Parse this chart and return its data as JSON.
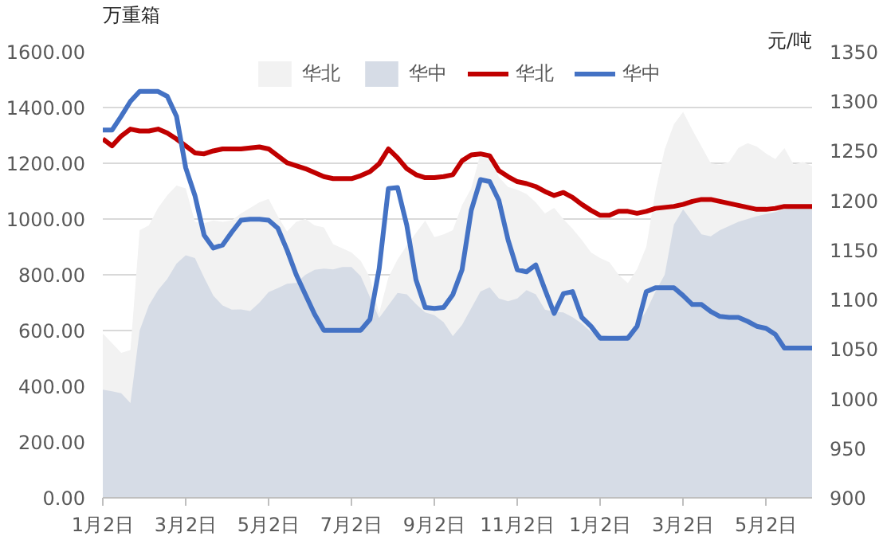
{
  "chart_data": {
    "type": "line",
    "categories": [
      "1月2日",
      null,
      null,
      null,
      null,
      null,
      null,
      null,
      null,
      "3月2日",
      null,
      null,
      null,
      null,
      null,
      null,
      null,
      null,
      "5月2日",
      null,
      null,
      null,
      null,
      null,
      null,
      null,
      null,
      "7月2日",
      null,
      null,
      null,
      null,
      null,
      null,
      null,
      null,
      "9月2日",
      null,
      null,
      null,
      null,
      null,
      null,
      null,
      null,
      "11月2日",
      null,
      null,
      null,
      null,
      null,
      null,
      null,
      null,
      "1月2日",
      null,
      null,
      null,
      null,
      null,
      null,
      null,
      null,
      "3月2日",
      null,
      null,
      null,
      null,
      null,
      null,
      null,
      null,
      "5月2日",
      null,
      null,
      null,
      null,
      null
    ],
    "series": [
      {
        "name": "华北",
        "type": "area",
        "color": "#f2f2f2",
        "values": [
          589,
          555,
          520,
          530,
          960,
          977,
          1040,
          1085,
          1120,
          1110,
          990,
          985,
          995,
          990,
          995,
          1020,
          1040,
          1060,
          1072,
          1010,
          955,
          990,
          1000,
          977,
          970,
          910,
          895,
          880,
          850,
          790,
          662,
          790,
          855,
          905,
          950,
          994,
          935,
          945,
          960,
          1050,
          1110,
          1235,
          1240,
          1150,
          1115,
          1105,
          1090,
          1060,
          1020,
          1040,
          1000,
          965,
          925,
          880,
          860,
          845,
          800,
          770,
          820,
          900,
          1100,
          1250,
          1340,
          1384,
          1320,
          1260,
          1200,
          1195,
          1205,
          1255,
          1272,
          1260,
          1235,
          1215,
          1254,
          1195,
          1205,
          1190
        ]
      },
      {
        "name": "华中",
        "type": "area",
        "color": "#d6dce6",
        "values": [
          388,
          382,
          375,
          340,
          600,
          690,
          745,
          785,
          840,
          870,
          860,
          790,
          725,
          690,
          675,
          676,
          670,
          700,
          738,
          752,
          768,
          771,
          800,
          818,
          822,
          819,
          828,
          828,
          795,
          720,
          645,
          690,
          735,
          730,
          695,
          665,
          655,
          630,
          580,
          620,
          680,
          740,
          755,
          715,
          705,
          715,
          745,
          730,
          675,
          667,
          665,
          648,
          625,
          595,
          585,
          580,
          580,
          585,
          620,
          670,
          740,
          800,
          980,
          1035,
          990,
          945,
          938,
          960,
          975,
          990,
          1000,
          1010,
          1018,
          1025,
          1035,
          1040,
          1043,
          1045
        ]
      },
      {
        "name": "华北",
        "type": "line",
        "axis": "y2",
        "color": "#c00000",
        "values": [
          1262,
          1255,
          1265,
          1272,
          1270,
          1270,
          1272,
          1268,
          1262,
          1255,
          1248,
          1247,
          1250,
          1252,
          1252,
          1252,
          1253,
          1254,
          1252,
          1245,
          1238,
          1235,
          1232,
          1228,
          1224,
          1222,
          1222,
          1222,
          1225,
          1229,
          1237,
          1252,
          1243,
          1232,
          1226,
          1223,
          1223,
          1224,
          1226,
          1240,
          1246,
          1247,
          1245,
          1230,
          1224,
          1219,
          1217,
          1214,
          1209,
          1205,
          1208,
          1203,
          1196,
          1190,
          1185,
          1185,
          1189,
          1189,
          1187,
          1189,
          1192,
          1193,
          1194,
          1196,
          1199,
          1201,
          1201,
          1199,
          1197,
          1195,
          1193,
          1191,
          1191,
          1192,
          1194,
          1194,
          1194,
          1194
        ]
      },
      {
        "name": "华中",
        "type": "line",
        "axis": "y2",
        "color": "#4472c4",
        "values": [
          1271,
          1271,
          1285,
          1300,
          1310,
          1310,
          1310,
          1305,
          1285,
          1233,
          1205,
          1165,
          1152,
          1155,
          1168,
          1180,
          1181,
          1181,
          1180,
          1172,
          1150,
          1125,
          1105,
          1085,
          1069,
          1069,
          1069,
          1069,
          1069,
          1080,
          1131,
          1212,
          1213,
          1175,
          1120,
          1092,
          1091,
          1092,
          1105,
          1130,
          1190,
          1221,
          1219,
          1200,
          1160,
          1130,
          1128,
          1135,
          1110,
          1086,
          1106,
          1108,
          1082,
          1073,
          1061,
          1061,
          1061,
          1061,
          1073,
          1108,
          1112,
          1112,
          1112,
          1104,
          1095,
          1095,
          1088,
          1083,
          1082,
          1082,
          1078,
          1073,
          1071,
          1065,
          1051,
          1051,
          1051,
          1051
        ]
      }
    ],
    "ylabel": "万重箱",
    "y2label": "元/吨",
    "ylim": [
      0,
      1600
    ],
    "yticks": [
      {
        "value": 0,
        "label": "0.00"
      },
      {
        "value": 200,
        "label": "200.00"
      },
      {
        "value": 400,
        "label": "400.00"
      },
      {
        "value": 600,
        "label": "600.00"
      },
      {
        "value": 800,
        "label": "800.00"
      },
      {
        "value": 1000,
        "label": "1000.00"
      },
      {
        "value": 1200,
        "label": "1200.00"
      },
      {
        "value": 1400,
        "label": "1400.00"
      },
      {
        "value": 1600,
        "label": "1600.00"
      }
    ],
    "y2lim": [
      900,
      1350
    ],
    "y2ticks": [
      900,
      950,
      1000,
      1050,
      1100,
      1150,
      1200,
      1250,
      1300,
      1350
    ],
    "grid": "y",
    "legend": "top",
    "line_style": "solid",
    "marker": "none"
  }
}
